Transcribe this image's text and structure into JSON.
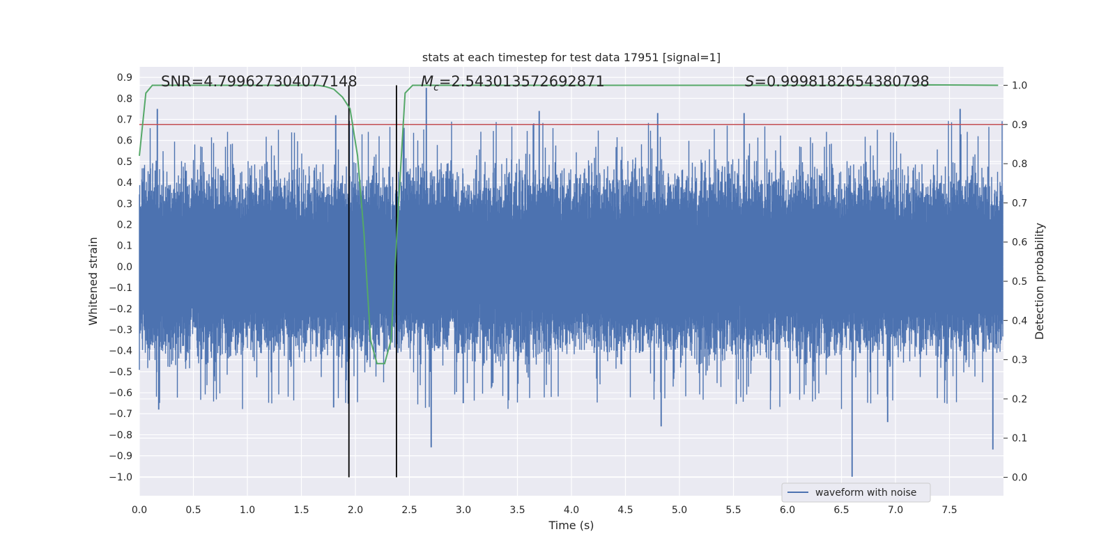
{
  "chart_data": {
    "type": "line",
    "title": "stats at each timestep for test data 17951 [signal=1]",
    "xlabel": "Time (s)",
    "ylabel": "Whitened strain",
    "y2label": "Detection probability",
    "xlim": [
      0.0,
      8.0
    ],
    "ylim": [
      -1.09,
      0.95
    ],
    "y2lim": [
      -0.047,
      1.047
    ],
    "x_ticks": [
      "0.0",
      "0.5",
      "1.0",
      "1.5",
      "2.0",
      "2.5",
      "3.0",
      "3.5",
      "4.0",
      "4.5",
      "5.0",
      "5.5",
      "6.0",
      "6.5",
      "7.0",
      "7.5"
    ],
    "y_ticks": [
      "0.9",
      "0.8",
      "0.7",
      "0.6",
      "0.5",
      "0.4",
      "0.3",
      "0.2",
      "0.1",
      "0.0",
      "−0.1",
      "−0.2",
      "−0.3",
      "−0.4",
      "−0.5",
      "−0.6",
      "−0.7",
      "−0.8",
      "−0.9",
      "−1.0"
    ],
    "y2_ticks": [
      "1.0",
      "0.9",
      "0.8",
      "0.7",
      "0.6",
      "0.5",
      "0.4",
      "0.3",
      "0.2",
      "0.1",
      "0.0"
    ],
    "grid": true,
    "legend": {
      "entries": [
        "waveform with noise"
      ],
      "placement": "lower-right"
    },
    "annotations": {
      "snr": "SNR=4.799627304077148",
      "mc_symbol": "M",
      "mc_sub": "c",
      "mc_value": "=2.543013572692871",
      "s_symbol": "S",
      "s_value": "=0.9998182654380798"
    },
    "threshold": {
      "y2": 0.9,
      "color": "#c44e52"
    },
    "vlines": [
      1.94,
      2.38
    ],
    "waveform": {
      "name": "waveform with noise",
      "color": "#4c72b0",
      "duration_s": 8.0,
      "envelope_upper": 0.45,
      "envelope_lower": -0.42,
      "peaks": [
        {
          "x": 0.17,
          "y": 0.75
        },
        {
          "x": 1.82,
          "y": 0.72
        },
        {
          "x": 2.66,
          "y": 0.85
        },
        {
          "x": 3.7,
          "y": 0.74
        },
        {
          "x": 5.6,
          "y": 0.73
        },
        {
          "x": 7.6,
          "y": 0.75
        },
        {
          "x": 2.45,
          "y": 0.66
        },
        {
          "x": 4.8,
          "y": 0.73
        },
        {
          "x": 6.6,
          "y": -1.0
        },
        {
          "x": 2.7,
          "y": -0.86
        },
        {
          "x": 7.9,
          "y": -0.87
        },
        {
          "x": 4.83,
          "y": -0.76
        },
        {
          "x": 0.18,
          "y": -0.68
        },
        {
          "x": 1.8,
          "y": -0.67
        },
        {
          "x": 6.93,
          "y": -0.74
        },
        {
          "x": 3.0,
          "y": -0.65
        }
      ]
    },
    "probability": {
      "color": "#55a868",
      "points": [
        [
          0.0,
          0.82
        ],
        [
          0.06,
          0.98
        ],
        [
          0.12,
          1.0
        ],
        [
          1.5,
          1.0
        ],
        [
          1.65,
          1.0
        ],
        [
          1.72,
          0.997
        ],
        [
          1.8,
          0.99
        ],
        [
          1.88,
          0.97
        ],
        [
          1.95,
          0.94
        ],
        [
          2.02,
          0.82
        ],
        [
          2.08,
          0.62
        ],
        [
          2.14,
          0.35
        ],
        [
          2.2,
          0.29
        ],
        [
          2.27,
          0.29
        ],
        [
          2.33,
          0.35
        ],
        [
          2.4,
          0.7
        ],
        [
          2.46,
          0.98
        ],
        [
          2.53,
          1.0
        ],
        [
          7.2,
          1.0
        ],
        [
          7.3,
          1.001
        ],
        [
          7.95,
          1.0
        ]
      ]
    }
  }
}
